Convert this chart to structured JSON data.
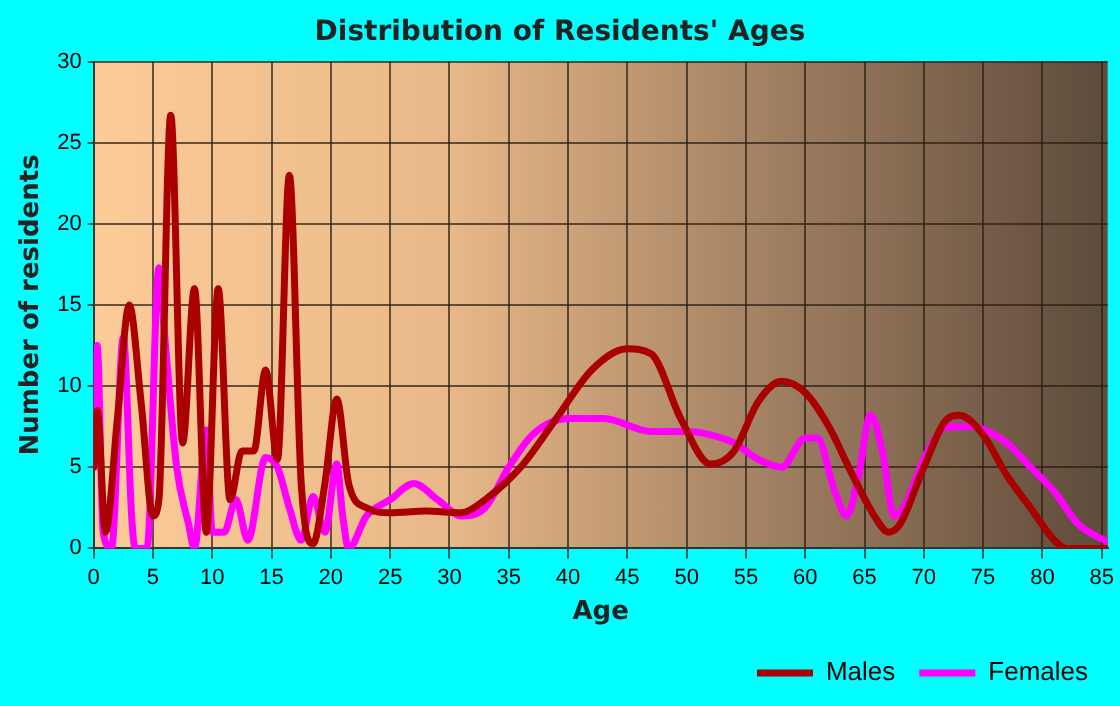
{
  "chart_data": {
    "type": "line",
    "title": "Distribution of Residents' Ages",
    "xlabel": "Age",
    "ylabel": "Number of residents",
    "xlim": [
      0,
      85.5
    ],
    "xticks": [
      0,
      5,
      10,
      15,
      20,
      25,
      30,
      35,
      40,
      45,
      50,
      55,
      60,
      65,
      70,
      75,
      80,
      85
    ],
    "ylim": [
      0,
      30
    ],
    "yticks": [
      0,
      5,
      10,
      15,
      20,
      25,
      30
    ],
    "grid": true,
    "legend": "bottom right",
    "marker": "none",
    "line_style": "solid",
    "series": [
      {
        "name": "Males",
        "color": "#aa0000",
        "x": [
          0,
          0.3,
          1,
          2,
          3,
          4,
          5,
          5.5,
          6.5,
          7.5,
          8.5,
          9.5,
          10.5,
          11.5,
          12.5,
          13.5,
          14.5,
          15.5,
          16.5,
          17.5,
          18.5,
          19.5,
          20.5,
          21.5,
          23,
          25,
          28,
          31,
          33,
          36,
          39,
          42,
          45,
          47,
          49.5,
          52,
          54,
          56,
          58,
          60,
          62,
          64,
          66,
          67,
          68,
          70,
          72,
          73,
          75,
          77,
          79,
          81,
          82,
          85.5
        ],
        "values": [
          5,
          8.5,
          1,
          8,
          15,
          9,
          2,
          3,
          26.7,
          6.5,
          16,
          1,
          16,
          3,
          6,
          6,
          11,
          5.5,
          23,
          4,
          0.3,
          4,
          9.2,
          4,
          2.5,
          2.2,
          2.3,
          2.2,
          3,
          5,
          8,
          11,
          12.3,
          12,
          8,
          5.2,
          6,
          9,
          10.3,
          9.6,
          7.5,
          4.5,
          1.8,
          1,
          1.5,
          5,
          8,
          8.2,
          7,
          4.5,
          2.5,
          0.5,
          0,
          0
        ]
      },
      {
        "name": "Females",
        "color": "#ff00ff",
        "x": [
          0,
          0.3,
          0.8,
          1.5,
          2.5,
          3.2,
          3.5,
          4.5,
          5.5,
          6,
          7,
          8,
          8.5,
          9.5,
          10,
          11,
          12,
          13,
          14.5,
          15.5,
          16.5,
          17.5,
          18.5,
          19.5,
          20.5,
          21,
          21.5,
          23,
          25,
          27,
          29,
          31,
          33,
          35,
          37,
          40,
          43,
          47,
          50,
          52,
          54,
          56,
          58,
          60,
          61,
          62.5,
          63.5,
          64.5,
          65.5,
          66.5,
          67.5,
          68.5,
          70,
          72,
          74,
          77,
          79,
          81,
          83,
          85.5
        ],
        "values": [
          5,
          12.5,
          1,
          0,
          13,
          2,
          0,
          0,
          17.3,
          13,
          5,
          1.5,
          0,
          7.3,
          1,
          1,
          3,
          0.5,
          5.6,
          5,
          2.5,
          0.5,
          3.2,
          1,
          5.2,
          2,
          0,
          2,
          3,
          4,
          3,
          2,
          2.5,
          5,
          7,
          8,
          8,
          7.2,
          7.2,
          7,
          6.5,
          5.5,
          5,
          6.8,
          6.8,
          3.5,
          2,
          4.5,
          8.2,
          6,
          2,
          2.8,
          5.5,
          7.5,
          7.5,
          6.5,
          5,
          3.5,
          1.5,
          0.4
        ]
      }
    ]
  }
}
